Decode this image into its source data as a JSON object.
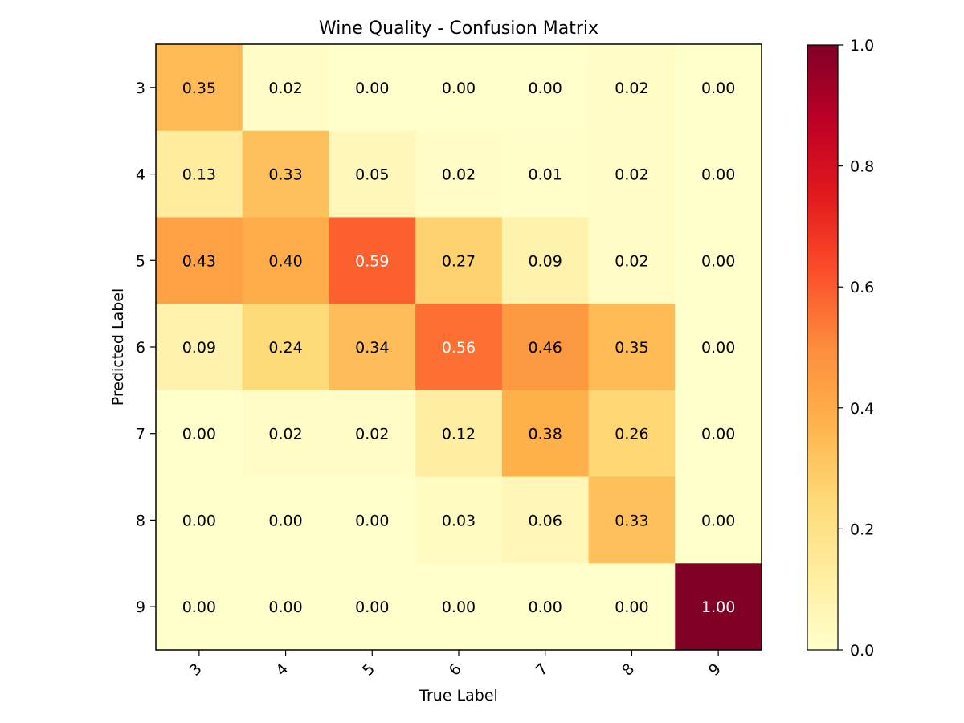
{
  "chart_data": {
    "type": "heatmap",
    "title": "Wine Quality - Confusion Matrix",
    "xlabel": "True Label",
    "ylabel": "Predicted Label",
    "x_categories": [
      "3",
      "4",
      "5",
      "6",
      "7",
      "8",
      "9"
    ],
    "y_categories": [
      "3",
      "4",
      "5",
      "6",
      "7",
      "8",
      "9"
    ],
    "values": [
      [
        0.35,
        0.02,
        0.0,
        0.0,
        0.0,
        0.02,
        0.0
      ],
      [
        0.13,
        0.33,
        0.05,
        0.02,
        0.01,
        0.02,
        0.0
      ],
      [
        0.43,
        0.4,
        0.59,
        0.27,
        0.09,
        0.02,
        0.0
      ],
      [
        0.09,
        0.24,
        0.34,
        0.56,
        0.46,
        0.35,
        0.0
      ],
      [
        0.0,
        0.02,
        0.02,
        0.12,
        0.38,
        0.26,
        0.0
      ],
      [
        0.0,
        0.0,
        0.0,
        0.03,
        0.06,
        0.33,
        0.0
      ],
      [
        0.0,
        0.0,
        0.0,
        0.0,
        0.0,
        0.0,
        1.0
      ]
    ],
    "colormap": "YlOrRd",
    "vmin": 0.0,
    "vmax": 1.0,
    "colorbar_ticks": [
      "0.0",
      "0.2",
      "0.4",
      "0.6",
      "0.8",
      "1.0"
    ],
    "x_tick_rotation": 45,
    "grid": false
  }
}
